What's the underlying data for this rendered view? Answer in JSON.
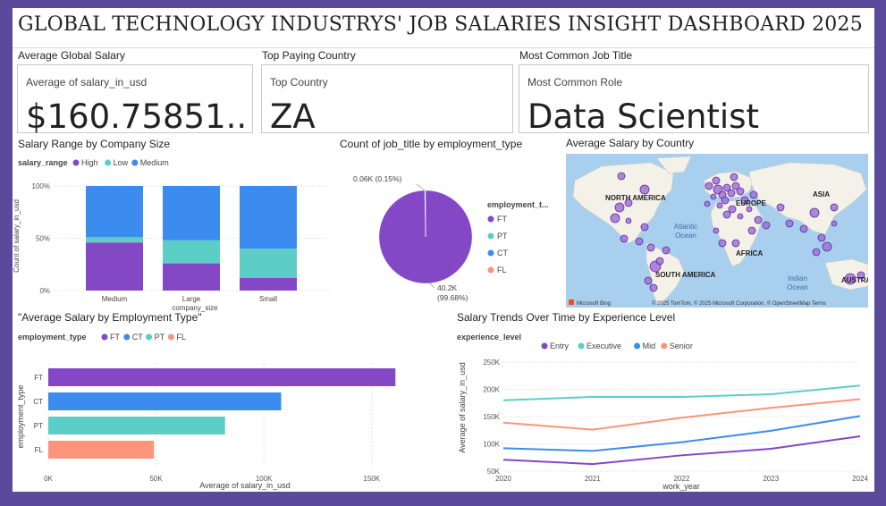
{
  "dashboard": {
    "title": "GLOBAL TECHNOLOGY INDUSTRYS' JOB SALARIES INSIGHT DASHBOARD 2025"
  },
  "kpis": [
    {
      "label": "Average Global Salary",
      "caption": "Average of salary_in_usd",
      "value": "$160.75851..."
    },
    {
      "label": "Top Paying Country",
      "caption": "Top Country",
      "value": "ZA"
    },
    {
      "label": "Most Common Job Title",
      "caption": "Most Common Role",
      "value": "Data Scientist"
    }
  ],
  "colors": {
    "High": "#8447c6",
    "Low": "#5dcec6",
    "Medium": "#3c8cf0",
    "FT": "#8447c6",
    "CT": "#3c8cf0",
    "PT": "#5dcec6",
    "FL": "#fb947a",
    "Entry": "#8447c6",
    "Executive": "#5dcec6",
    "Mid": "#3c8cf0",
    "Senior": "#fb947a"
  },
  "map": {
    "title": "Average Salary by Country",
    "labels": [
      "NORTH AMERICA",
      "EUROPE",
      "ASIA",
      "AFRICA",
      "SOUTH AMERICA",
      "AUSTRA",
      "Atlantic",
      "Ocean",
      "Indian",
      "Ocean"
    ],
    "brand": "Microsoft Bing",
    "credit": "© 2025 TomTom, © 2025 Microsoft Corporation, © OpenStreetMap  Terms"
  },
  "chart_data": [
    {
      "type": "bar",
      "title": "Salary Range by Company Size",
      "legend_title": "salary_range",
      "legend": [
        "High",
        "Low",
        "Medium"
      ],
      "xlabel": "company_size",
      "ylabel": "Count of salary_in_usd",
      "stacked_percent": true,
      "categories": [
        "Medium",
        "Large",
        "Small"
      ],
      "series": [
        {
          "name": "High",
          "values": [
            46,
            26,
            12
          ]
        },
        {
          "name": "Low",
          "values": [
            5,
            22,
            28
          ]
        },
        {
          "name": "Medium",
          "values": [
            49,
            52,
            60
          ]
        }
      ],
      "yticks": [
        "0%",
        "50%",
        "100%"
      ]
    },
    {
      "type": "pie",
      "title": "Count of job_title by employment_type",
      "legend_title": "employment_t...",
      "legend": [
        "FT",
        "PT",
        "CT",
        "FL"
      ],
      "slices": [
        {
          "name": "FT",
          "value": 99.68,
          "label": "40.2K\n(99.68%)"
        },
        {
          "name": "other",
          "value": 0.15,
          "label": "0.06K (0.15%)"
        },
        {
          "name": "PT",
          "value": 0.09,
          "label": ""
        },
        {
          "name": "FL",
          "value": 0.08,
          "label": ""
        }
      ]
    },
    {
      "type": "bar",
      "orientation": "horizontal",
      "title": "\"Average Salary by Employment Type\"",
      "legend_title": "employment_type",
      "legend": [
        "FT",
        "CT",
        "PT",
        "FL"
      ],
      "categories": [
        "FT",
        "CT",
        "PT",
        "FL"
      ],
      "values": [
        161000,
        108000,
        82000,
        49000
      ],
      "xlabel": "Average of salary_in_usd",
      "ylabel": "employment_type",
      "xlim": [
        0,
        170000
      ],
      "xticks": [
        "0K",
        "50K",
        "100K",
        "150K"
      ]
    },
    {
      "type": "line",
      "title": "Salary Trends Over Time by Experience Level",
      "legend_title": "experience_level",
      "legend": [
        "Entry",
        "Executive",
        "Mid",
        "Senior"
      ],
      "x": [
        2020,
        2021,
        2022,
        2023,
        2024
      ],
      "xlabel": "work_year",
      "ylabel": "Average of salary_in_usd",
      "ylim": [
        50000,
        250000
      ],
      "yticks": [
        "50K",
        "100K",
        "150K",
        "200K",
        "250K"
      ],
      "series": [
        {
          "name": "Entry",
          "values": [
            71000,
            63000,
            79000,
            91000,
            114000
          ]
        },
        {
          "name": "Executive",
          "values": [
            180000,
            186000,
            186000,
            191000,
            207000
          ]
        },
        {
          "name": "Mid",
          "values": [
            92000,
            87000,
            103000,
            124000,
            151000
          ]
        },
        {
          "name": "Senior",
          "values": [
            139000,
            126000,
            148000,
            166000,
            182000
          ]
        }
      ]
    }
  ]
}
